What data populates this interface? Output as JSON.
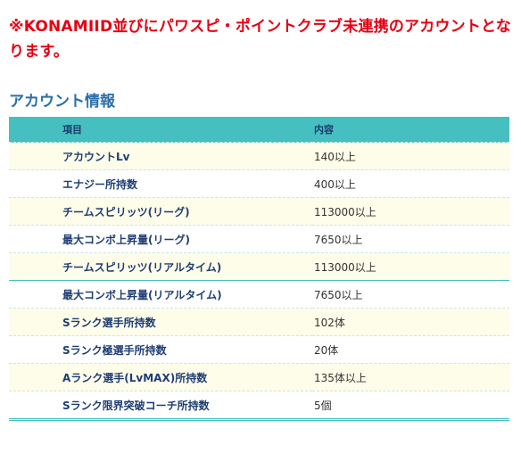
{
  "notice": "※KONAMIID並びにパワスピ・ポイントクラブ未連携のアカウントとなります。",
  "section_title": "アカウント情報",
  "table": {
    "headers": [
      "項目",
      "内容"
    ],
    "rows": [
      {
        "item": "アカウントLv",
        "value": "140以上"
      },
      {
        "item": "エナジー所持数",
        "value": "400以上"
      },
      {
        "item": "チームスピリッツ(リーグ)",
        "value": "113000以上"
      },
      {
        "item": "最大コンボ上昇量(リーグ)",
        "value": "7650以上"
      },
      {
        "item": "チームスピリッツ(リアルタイム)",
        "value": "113000以上"
      },
      {
        "item": "最大コンボ上昇量(リアルタイム)",
        "value": "7650以上"
      },
      {
        "item": "Sランク選手所持数",
        "value": "102体"
      },
      {
        "item": "Sランク極選手所持数",
        "value": "20体"
      },
      {
        "item": "Aランク選手(LvMAX)所持数",
        "value": "135体以上"
      },
      {
        "item": "Sランク限界突破コーチ所持数",
        "value": "5個"
      }
    ]
  }
}
